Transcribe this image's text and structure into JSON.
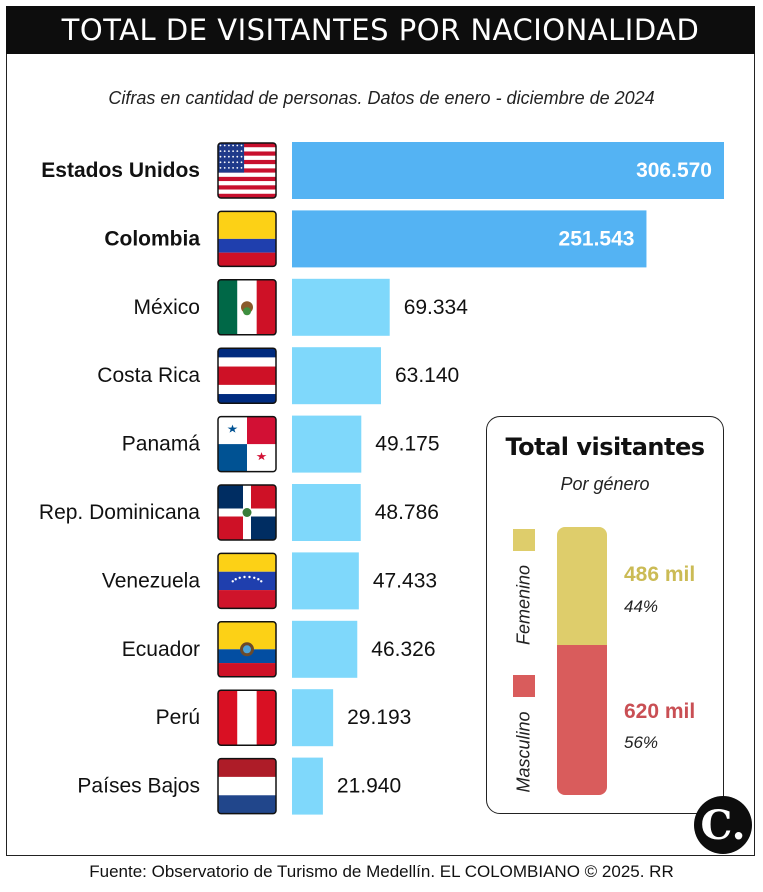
{
  "header": {
    "title": "TOTAL DE VISITANTES POR NACIONALIDAD",
    "subtitle": "Cifras en cantidad de personas. Datos de enero - diciembre de 2024"
  },
  "chart_data": [
    {
      "type": "bar",
      "orientation": "horizontal",
      "categories": [
        "Estados Unidos",
        "Colombia",
        "México",
        "Costa Rica",
        "Panamá",
        "Rep. Dominicana",
        "Venezuela",
        "Ecuador",
        "Perú",
        "Países Bajos"
      ],
      "values": [
        306570,
        251543,
        69334,
        63140,
        49175,
        48786,
        47433,
        46326,
        29193,
        21940
      ],
      "value_labels": [
        "306.570",
        "251.543",
        "69.334",
        "63.140",
        "49.175",
        "48.786",
        "47.433",
        "46.326",
        "29.193",
        "21.940"
      ],
      "highlighted": [
        "Estados Unidos",
        "Colombia"
      ],
      "colors": {
        "highlight": "#54b3f3",
        "normal": "#7fd8fb"
      },
      "flag_icons": [
        "us-flag-icon",
        "colombia-flag-icon",
        "mexico-flag-icon",
        "costa-rica-flag-icon",
        "panama-flag-icon",
        "dominican-republic-flag-icon",
        "venezuela-flag-icon",
        "ecuador-flag-icon",
        "peru-flag-icon",
        "netherlands-flag-icon"
      ]
    },
    {
      "type": "bar",
      "orientation": "stacked-vertical",
      "title": "Total visitantes",
      "subtitle": "Por género",
      "series": [
        {
          "name": "Femenino",
          "value_label": "486 mil",
          "value": 486000,
          "percent_label": "44%",
          "percent": 44,
          "color": "#decd6b",
          "text_color": "#cbbb55"
        },
        {
          "name": "Masculino",
          "value_label": "620 mil",
          "value": 620000,
          "percent_label": "56%",
          "percent": 56,
          "color": "#d95c5c",
          "text_color": "#c94f54"
        }
      ]
    }
  ],
  "footer": {
    "source": "Fuente: Observatorio de Turismo de Medellín. EL COLOMBIANO © 2025. RR",
    "logo_text": "C."
  }
}
